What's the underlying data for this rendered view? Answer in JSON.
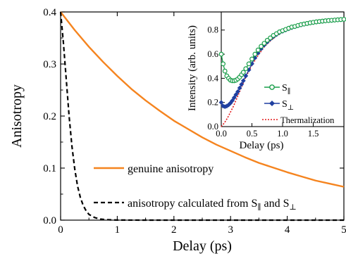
{
  "chart_data": [
    {
      "type": "line",
      "title": "",
      "xlabel": "Delay (ps)",
      "ylabel": "Anisotropy",
      "xlim": [
        0,
        5
      ],
      "ylim": [
        0,
        0.4
      ],
      "x_ticks": [
        "0",
        "1",
        "2",
        "3",
        "4",
        "5"
      ],
      "y_ticks": [
        "0.0",
        "0.1",
        "0.2",
        "0.3",
        "0.4"
      ],
      "grid": false,
      "series": [
        {
          "name": "genuine anisotropy",
          "color": "#f5841f",
          "style": "solid",
          "x": [
            0,
            0.25,
            0.5,
            0.75,
            1.0,
            1.25,
            1.5,
            1.75,
            2.0,
            2.25,
            2.5,
            2.75,
            3.0,
            3.25,
            3.5,
            3.75,
            4.0,
            4.25,
            4.5,
            4.75,
            5.0
          ],
          "y": [
            0.4,
            0.365,
            0.333,
            0.304,
            0.277,
            0.252,
            0.23,
            0.21,
            0.191,
            0.175,
            0.159,
            0.145,
            0.133,
            0.121,
            0.11,
            0.101,
            0.092,
            0.084,
            0.076,
            0.07,
            0.064
          ]
        },
        {
          "name": "anisotropy calculated from S∥ and S⊥",
          "legend_text": "anisotropy calculated from S",
          "legend_sub1": "∥",
          "legend_mid": " and S",
          "legend_sub2": "⊥",
          "color": "#000000",
          "style": "dashed",
          "x": [
            0,
            0.05,
            0.1,
            0.15,
            0.2,
            0.25,
            0.3,
            0.35,
            0.4,
            0.45,
            0.5,
            0.6,
            0.7,
            0.8,
            0.9,
            1.0,
            1.2,
            1.5,
            2.0,
            3.0,
            4.0,
            5.0
          ],
          "y": [
            0.4,
            0.34,
            0.27,
            0.2,
            0.142,
            0.098,
            0.065,
            0.043,
            0.028,
            0.018,
            0.011,
            0.005,
            0.002,
            0.001,
            0.0005,
            0.0002,
            0.0001,
            0,
            0,
            0,
            0,
            0
          ]
        }
      ]
    },
    {
      "type": "line",
      "title": "",
      "xlabel": "Delay (ps)",
      "ylabel": "Intensity (arb. units)",
      "xlim": [
        0,
        2
      ],
      "ylim": [
        0,
        0.95
      ],
      "x_ticks": [
        "0.0",
        "0.5",
        "1.0",
        "1.5"
      ],
      "y_ticks": [
        "0.0",
        "0.2",
        "0.4",
        "0.6",
        "0.8"
      ],
      "grid": false,
      "legend_position": "bottom-right",
      "series": [
        {
          "name": "S∥",
          "legend_base": "S",
          "legend_sub": "∥",
          "color": "#1a9e4a",
          "marker": "open-circle",
          "x": [
            0,
            0.03,
            0.06,
            0.09,
            0.12,
            0.15,
            0.18,
            0.21,
            0.24,
            0.27,
            0.3,
            0.33,
            0.36,
            0.4,
            0.45,
            0.5,
            0.55,
            0.6,
            0.65,
            0.7,
            0.75,
            0.8,
            0.85,
            0.9,
            0.95,
            1.0,
            1.05,
            1.1,
            1.15,
            1.2,
            1.25,
            1.3,
            1.35,
            1.4,
            1.45,
            1.5,
            1.55,
            1.6,
            1.65,
            1.7,
            1.75,
            1.8,
            1.85,
            1.9,
            1.95,
            2.0
          ],
          "y": [
            0.6,
            0.52,
            0.46,
            0.42,
            0.4,
            0.385,
            0.38,
            0.38,
            0.385,
            0.395,
            0.41,
            0.43,
            0.45,
            0.48,
            0.52,
            0.56,
            0.6,
            0.635,
            0.665,
            0.69,
            0.715,
            0.735,
            0.755,
            0.77,
            0.785,
            0.795,
            0.805,
            0.815,
            0.825,
            0.83,
            0.838,
            0.845,
            0.85,
            0.855,
            0.86,
            0.864,
            0.868,
            0.871,
            0.874,
            0.877,
            0.879,
            0.881,
            0.883,
            0.885,
            0.887,
            0.889
          ]
        },
        {
          "name": "S⊥",
          "legend_base": "S",
          "legend_sub": "⊥",
          "color": "#1f3fa0",
          "marker": "filled-diamond",
          "x": [
            0,
            0.03,
            0.06,
            0.09,
            0.12,
            0.15,
            0.18,
            0.21,
            0.24,
            0.27,
            0.3,
            0.33,
            0.36,
            0.4,
            0.45,
            0.5,
            0.55,
            0.6,
            0.65,
            0.7,
            0.75,
            0.8,
            0.85,
            0.9,
            0.95,
            1.0,
            1.05,
            1.1,
            1.15,
            1.2,
            1.25,
            1.3,
            1.35,
            1.4,
            1.45,
            1.5,
            1.55,
            1.6,
            1.65,
            1.7,
            1.75,
            1.8,
            1.85,
            1.9,
            1.95,
            2.0
          ],
          "y": [
            0.2,
            0.17,
            0.165,
            0.17,
            0.18,
            0.195,
            0.215,
            0.24,
            0.265,
            0.29,
            0.32,
            0.35,
            0.38,
            0.42,
            0.47,
            0.52,
            0.57,
            0.61,
            0.645,
            0.675,
            0.7,
            0.725,
            0.745,
            0.762,
            0.778,
            0.79,
            0.8,
            0.81,
            0.82,
            0.828,
            0.835,
            0.842,
            0.848,
            0.853,
            0.858,
            0.862,
            0.866,
            0.869,
            0.872,
            0.875,
            0.878,
            0.88,
            0.882,
            0.884,
            0.886,
            0.888
          ]
        },
        {
          "name": "Thermalization",
          "color": "#e31a1c",
          "style": "dotted",
          "x": [
            0,
            0.05,
            0.1,
            0.15,
            0.2,
            0.25,
            0.3,
            0.35,
            0.4,
            0.5,
            0.6,
            0.7,
            0.8,
            0.9,
            1.0,
            1.2,
            1.4,
            1.6,
            1.8,
            2.0
          ],
          "y": [
            0.0,
            0.03,
            0.07,
            0.12,
            0.17,
            0.23,
            0.29,
            0.35,
            0.41,
            0.51,
            0.59,
            0.66,
            0.71,
            0.75,
            0.785,
            0.83,
            0.855,
            0.87,
            0.88,
            0.888
          ]
        }
      ]
    }
  ]
}
